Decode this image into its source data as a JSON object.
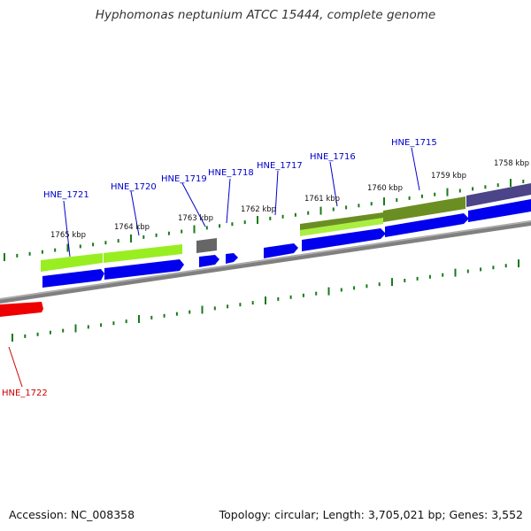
{
  "title": "Hyphomonas neptunium ATCC 15444, complete genome",
  "accession_text": "Accession: NC_008358",
  "topology_text": "Topology: circular; Length: 3,705,021 bp; Genes: 3,552",
  "colors": {
    "backbone": "#808080",
    "tick": "#1a7a1a",
    "cds_forward": "#0000ee",
    "cds_reverse": "#ee0000",
    "label_forward": "#0000cc",
    "label_reverse": "#cc0000",
    "feature_green": "#99ee22",
    "feature_olive": "#6b8e23",
    "feature_gray": "#666666",
    "feature_purple": "#4b4488"
  },
  "kbp_labels": [
    "1765 kbp",
    "1764 kbp",
    "1763 kbp",
    "1762 kbp",
    "1761 kbp",
    "1760 kbp",
    "1759 kbp",
    "1758 kbp"
  ],
  "gene_labels": [
    "HNE_1721",
    "HNE_1720",
    "HNE_1719",
    "HNE_1718",
    "HNE_1717",
    "HNE_1716",
    "HNE_1715",
    "HNE_1722"
  ]
}
